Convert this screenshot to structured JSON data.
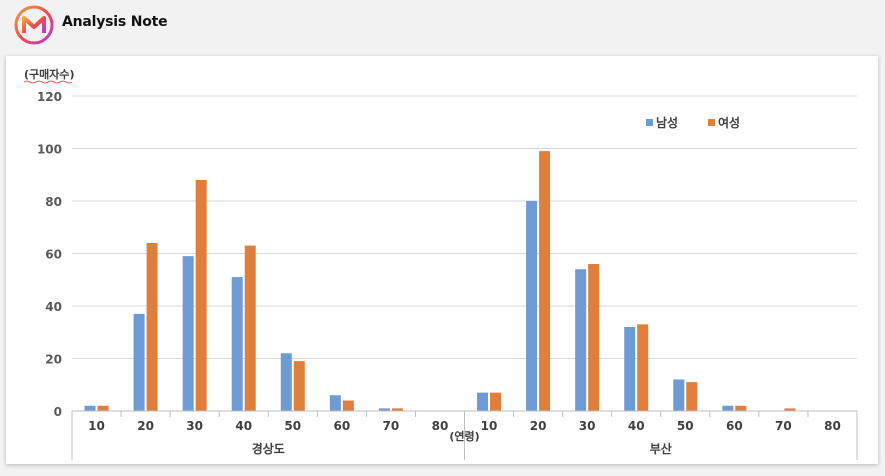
{
  "header": {
    "brand": "Analysis Note",
    "logo_icon": "m-logo-icon"
  },
  "chart_data": {
    "type": "bar",
    "ylabel": "(구매자수)",
    "xlabel": "(연령)",
    "ylim": [
      0,
      120
    ],
    "yticks": [
      0,
      20,
      40,
      60,
      80,
      100,
      120
    ],
    "groups": [
      "경상도",
      "부산"
    ],
    "categories": [
      "10",
      "20",
      "30",
      "40",
      "50",
      "60",
      "70",
      "80"
    ],
    "legend_position": "top-right",
    "grid": true,
    "series": [
      {
        "name": "남성",
        "color": "#6f9bd4",
        "values": {
          "경상도": [
            2,
            37,
            59,
            51,
            22,
            6,
            1,
            0
          ],
          "부산": [
            7,
            80,
            54,
            32,
            12,
            2,
            0,
            0
          ]
        }
      },
      {
        "name": "여성",
        "color": "#e07f3c",
        "values": {
          "경상도": [
            2,
            64,
            88,
            63,
            19,
            4,
            1,
            0
          ],
          "부산": [
            7,
            99,
            56,
            33,
            11,
            2,
            1,
            0
          ]
        }
      }
    ]
  }
}
